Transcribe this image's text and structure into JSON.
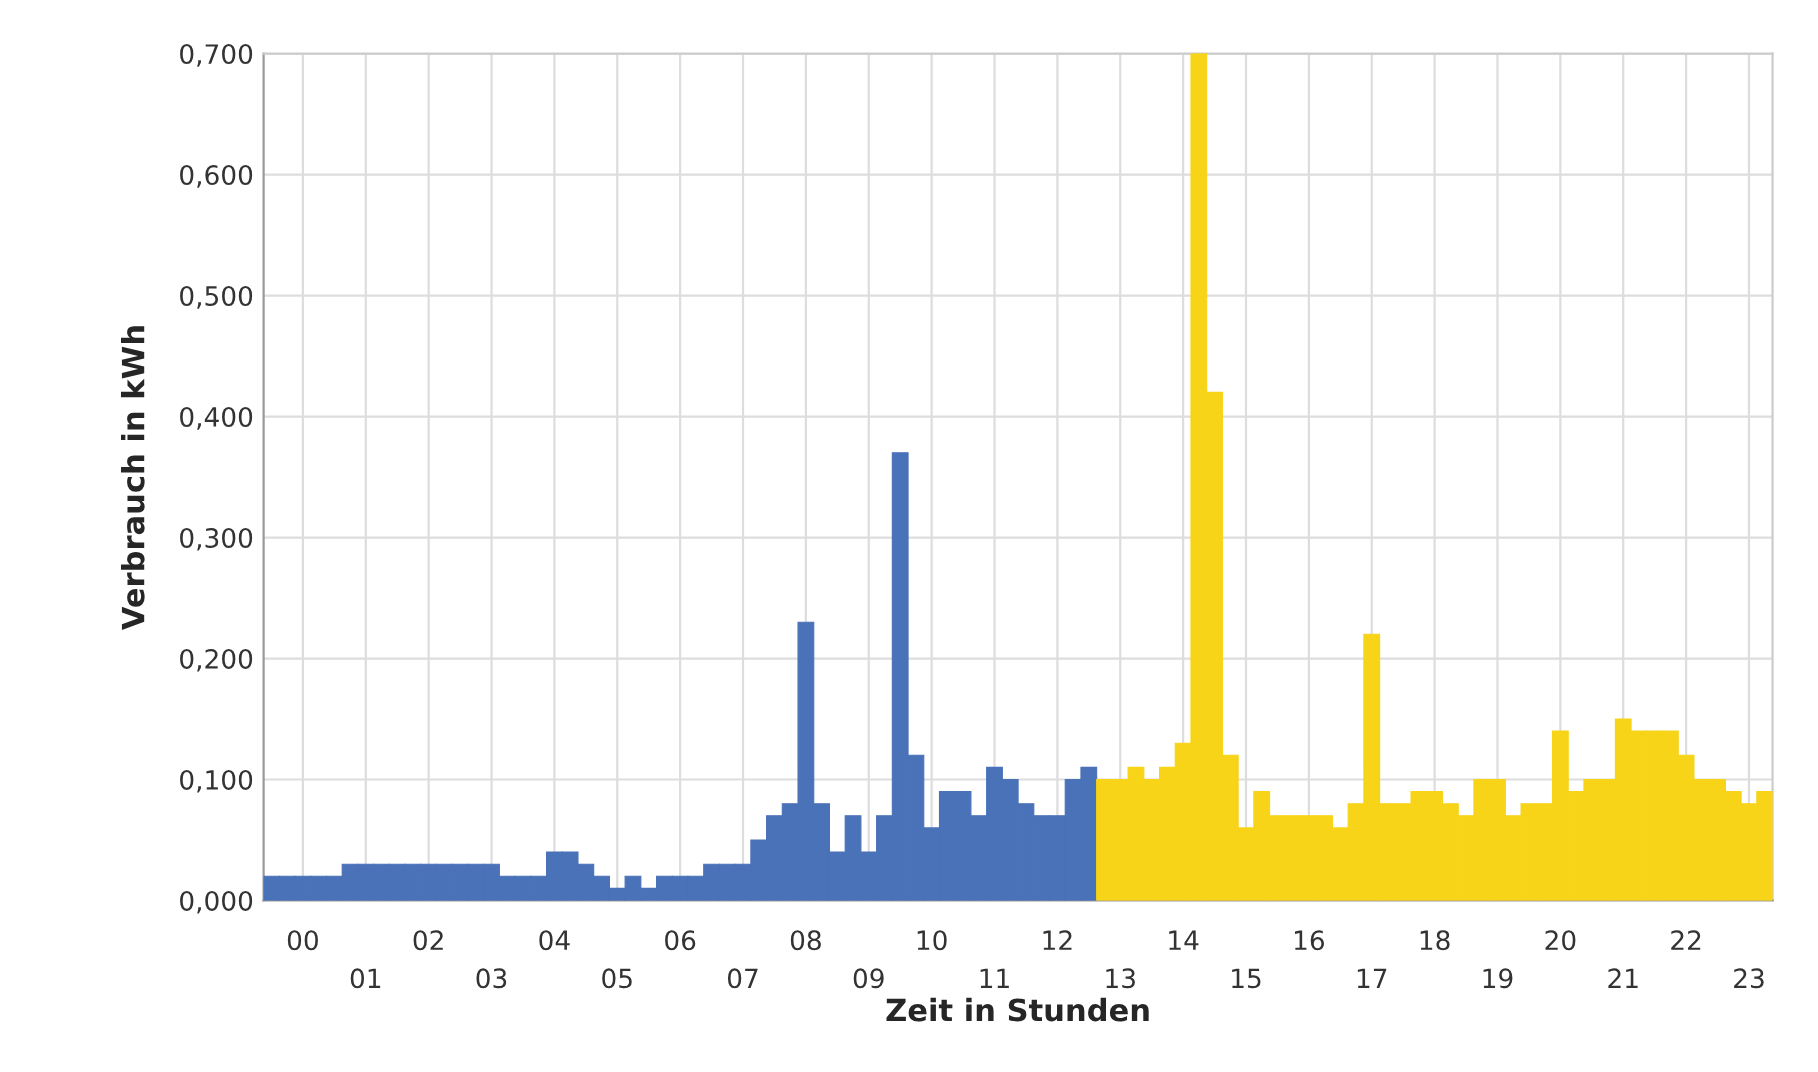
{
  "chart_data": {
    "type": "bar",
    "xlabel": "Zeit in Stunden",
    "ylabel": "Verbrauch in kWh",
    "categories": [
      null,
      null,
      "00",
      null,
      null,
      null,
      "01",
      null,
      null,
      null,
      "02",
      null,
      null,
      null,
      "03",
      null,
      null,
      null,
      "04",
      null,
      null,
      null,
      "05",
      null,
      null,
      null,
      "06",
      null,
      null,
      null,
      "07",
      null,
      null,
      null,
      "08",
      null,
      null,
      null,
      "09",
      null,
      null,
      null,
      "10",
      null,
      null,
      null,
      "11",
      null,
      null,
      null,
      "12",
      null,
      null,
      null,
      "13",
      null,
      null,
      null,
      "14",
      null,
      null,
      null,
      "15",
      null,
      null,
      null,
      "16",
      null,
      null,
      null,
      "17",
      null,
      null,
      null,
      "18",
      null,
      null,
      null,
      "19",
      null,
      null,
      null,
      "20",
      null,
      null,
      null,
      "21",
      null,
      null,
      null,
      "22",
      null,
      null,
      null,
      "23",
      null
    ],
    "values": [
      0.02,
      0.02,
      0.02,
      0.02,
      0.02,
      0.03,
      0.03,
      0.03,
      0.03,
      0.03,
      0.03,
      0.03,
      0.03,
      0.03,
      0.03,
      0.02,
      0.02,
      0.02,
      0.04,
      0.04,
      0.03,
      0.02,
      0.01,
      0.02,
      0.01,
      0.02,
      0.02,
      0.02,
      0.03,
      0.03,
      0.03,
      0.05,
      0.07,
      0.08,
      0.23,
      0.08,
      0.04,
      0.07,
      0.04,
      0.07,
      0.37,
      0.12,
      0.06,
      0.09,
      0.09,
      0.07,
      0.11,
      0.1,
      0.08,
      0.07,
      0.07,
      0.1,
      0.11,
      0.1,
      0.1,
      0.11,
      0.1,
      0.11,
      0.13,
      0.7,
      0.42,
      0.12,
      0.06,
      0.09,
      0.07,
      0.07,
      0.07,
      0.07,
      0.06,
      0.08,
      0.22,
      0.08,
      0.08,
      0.09,
      0.09,
      0.08,
      0.07,
      0.1,
      0.1,
      0.07,
      0.08,
      0.08,
      0.14,
      0.09,
      0.1,
      0.1,
      0.15,
      0.14,
      0.14,
      0.14,
      0.12,
      0.1,
      0.1,
      0.09,
      0.08,
      0.09
    ],
    "colors": [
      "#4a72b8",
      "#4a72b8",
      "#4a72b8",
      "#4a72b8",
      "#4a72b8",
      "#4a72b8",
      "#4a72b8",
      "#4a72b8",
      "#4a72b8",
      "#4a72b8",
      "#4a72b8",
      "#4a72b8",
      "#4a72b8",
      "#4a72b8",
      "#4a72b8",
      "#4a72b8",
      "#4a72b8",
      "#4a72b8",
      "#4a72b8",
      "#4a72b8",
      "#4a72b8",
      "#4a72b8",
      "#4a72b8",
      "#4a72b8",
      "#4a72b8",
      "#4a72b8",
      "#4a72b8",
      "#4a72b8",
      "#4a72b8",
      "#4a72b8",
      "#4a72b8",
      "#4a72b8",
      "#4a72b8",
      "#4a72b8",
      "#4a72b8",
      "#4a72b8",
      "#4a72b8",
      "#4a72b8",
      "#4a72b8",
      "#4a72b8",
      "#4a72b8",
      "#4a72b8",
      "#4a72b8",
      "#4a72b8",
      "#4a72b8",
      "#4a72b8",
      "#4a72b8",
      "#4a72b8",
      "#4a72b8",
      "#4a72b8",
      "#4a72b8",
      "#4a72b8",
      "#4a72b8",
      "#f7d418",
      "#f7d418",
      "#f7d418",
      "#f7d418",
      "#f7d418",
      "#f7d418",
      "#f7d418",
      "#f7d418",
      "#f7d418",
      "#f7d418",
      "#f7d418",
      "#f7d418",
      "#f7d418",
      "#f7d418",
      "#f7d418",
      "#f7d418",
      "#f7d418",
      "#f7d418",
      "#f7d418",
      "#f7d418",
      "#f7d418",
      "#f7d418",
      "#f7d418",
      "#f7d418",
      "#f7d418",
      "#f7d418",
      "#f7d418",
      "#f7d418",
      "#f7d418",
      "#f7d418",
      "#f7d418",
      "#f7d418",
      "#f7d418",
      "#f7d418",
      "#f7d418",
      "#f7d418",
      "#f7d418",
      "#f7d418",
      "#f7d418",
      "#f7d418",
      "#f7d418",
      "#f7d418",
      "#f7d418"
    ],
    "ylim": [
      0,
      0.7
    ],
    "yticks": [
      {
        "value": 0,
        "label": "0,000"
      },
      {
        "value": 0.1,
        "label": "0,100"
      },
      {
        "value": 0.2,
        "label": "0,200"
      },
      {
        "value": 0.3,
        "label": "0,300"
      },
      {
        "value": 0.4,
        "label": "0,400"
      },
      {
        "value": 0.5,
        "label": "0,500"
      },
      {
        "value": 0.6,
        "label": "0,600"
      },
      {
        "value": 0.7,
        "label": "0,700"
      }
    ],
    "grid": true
  }
}
